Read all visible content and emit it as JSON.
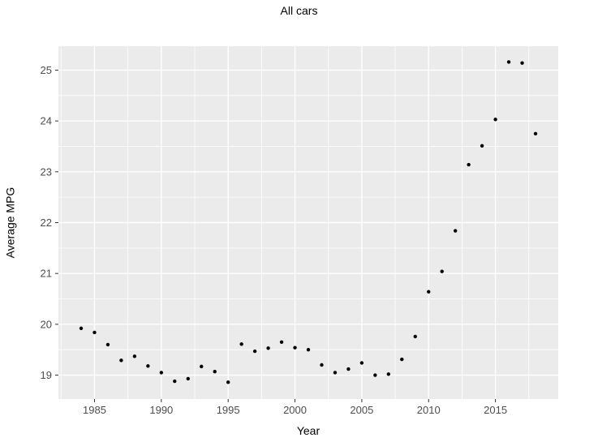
{
  "chart_data": {
    "type": "scatter",
    "title": "All cars",
    "xlabel": "Year",
    "ylabel": "Average MPG",
    "x": [
      1984,
      1985,
      1986,
      1987,
      1988,
      1989,
      1990,
      1991,
      1992,
      1993,
      1994,
      1995,
      1996,
      1997,
      1998,
      1999,
      2000,
      2001,
      2002,
      2003,
      2004,
      2005,
      2006,
      2007,
      2008,
      2009,
      2010,
      2011,
      2012,
      2013,
      2014,
      2015,
      2016,
      2017,
      2018
    ],
    "y": [
      19.92,
      19.84,
      19.6,
      19.29,
      19.37,
      19.18,
      19.05,
      18.88,
      18.93,
      19.17,
      19.07,
      18.86,
      19.61,
      19.47,
      19.53,
      19.65,
      19.54,
      19.5,
      19.2,
      19.05,
      19.12,
      19.24,
      19.0,
      19.02,
      19.31,
      19.76,
      20.64,
      21.04,
      21.84,
      23.14,
      23.51,
      24.03,
      25.16,
      25.14,
      23.75
    ],
    "xlim": [
      1982.3,
      2019.7
    ],
    "ylim": [
      18.53,
      25.47
    ],
    "x_ticks": [
      1985,
      1990,
      1995,
      2000,
      2005,
      2010,
      2015
    ],
    "y_ticks": [
      19,
      20,
      21,
      22,
      23,
      24,
      25
    ],
    "x_minor_ticks": [
      1982.5,
      1987.5,
      1992.5,
      1997.5,
      2002.5,
      2007.5,
      2012.5,
      2017.5
    ],
    "y_minor_ticks": [
      19.5,
      20.5,
      21.5,
      22.5,
      23.5,
      24.5
    ],
    "grid": "on",
    "legend": "none"
  },
  "styles": {
    "panel_background": "#ebebeb",
    "major_grid_color": "#ffffff",
    "minor_grid_color": "#ffffff",
    "point_color": "#000000",
    "tick_label_color": "#4d4d4d",
    "tick_mark_color": "#333333",
    "title_color": "#000000"
  }
}
